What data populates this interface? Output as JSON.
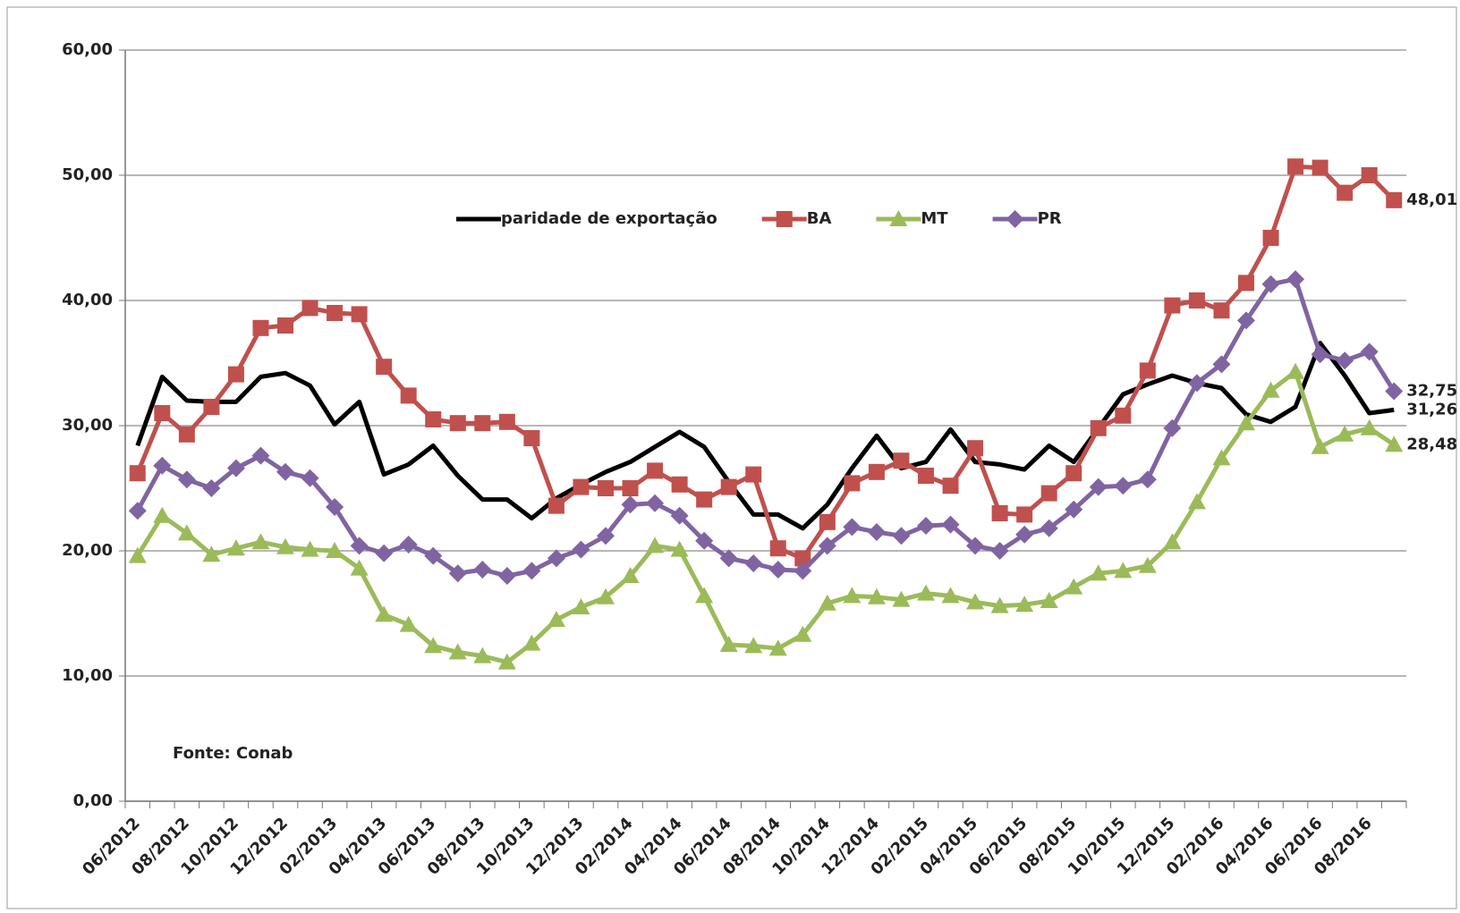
{
  "chart_data": {
    "type": "line",
    "categories": [
      "06/2012",
      null,
      "08/2012",
      null,
      "10/2012",
      null,
      "12/2012",
      null,
      "02/2013",
      null,
      "04/2013",
      null,
      "06/2013",
      null,
      "08/2013",
      null,
      "10/2013",
      null,
      "12/2013",
      null,
      "02/2014",
      null,
      "04/2014",
      null,
      "06/2014",
      null,
      "08/2014",
      null,
      "10/2014",
      null,
      "12/2014",
      null,
      "02/2015",
      null,
      "04/2015",
      null,
      "06/2015",
      null,
      "08/2015",
      null,
      "10/2015",
      null,
      "12/2015",
      null,
      "02/2016",
      null,
      "04/2016",
      null,
      "06/2016",
      null,
      "08/2016",
      null
    ],
    "series": [
      {
        "name": "paridade de exportação",
        "color": "#000000",
        "marker": "none",
        "values": [
          28.4,
          33.9,
          32.0,
          31.9,
          31.9,
          33.9,
          34.2,
          33.2,
          30.1,
          31.9,
          26.1,
          26.9,
          28.4,
          26.0,
          24.1,
          24.1,
          22.6,
          24.2,
          25.3,
          26.3,
          27.1,
          28.3,
          29.5,
          28.3,
          25.5,
          22.9,
          22.9,
          21.8,
          23.7,
          26.6,
          29.2,
          26.6,
          27.1,
          29.7,
          27.1,
          26.9,
          26.5,
          28.4,
          27.1,
          29.8,
          32.5,
          33.3,
          34.0,
          33.4,
          33.0,
          30.9,
          30.3,
          31.5,
          36.6,
          34.0,
          31.0,
          31.26
        ],
        "value_labels": [
          null,
          null,
          null,
          null,
          null,
          null,
          null,
          null,
          null,
          null,
          null,
          null,
          null,
          null,
          null,
          null,
          null,
          null,
          null,
          null,
          null,
          null,
          null,
          null,
          null,
          null,
          null,
          null,
          null,
          null,
          null,
          null,
          null,
          null,
          null,
          null,
          null,
          null,
          null,
          null,
          null,
          null,
          null,
          null,
          null,
          null,
          null,
          null,
          null,
          null,
          null,
          "31,26"
        ]
      },
      {
        "name": "BA",
        "color": "#c0504d",
        "marker": "square",
        "values": [
          26.2,
          31.0,
          29.3,
          31.5,
          34.1,
          37.8,
          38.0,
          39.4,
          39.0,
          38.9,
          34.7,
          32.4,
          30.5,
          30.2,
          30.2,
          30.3,
          29.0,
          23.6,
          25.1,
          25.0,
          25.0,
          26.4,
          25.3,
          24.1,
          25.1,
          26.1,
          20.2,
          19.4,
          22.3,
          25.4,
          26.3,
          27.2,
          26.0,
          25.2,
          28.2,
          23.0,
          22.9,
          24.6,
          26.2,
          29.8,
          30.8,
          34.4,
          39.6,
          40.0,
          39.2,
          41.4,
          45.0,
          50.7,
          50.6,
          48.6,
          50.0,
          48.01
        ],
        "value_labels": [
          null,
          null,
          null,
          null,
          null,
          null,
          null,
          null,
          null,
          null,
          null,
          null,
          null,
          null,
          null,
          null,
          null,
          null,
          null,
          null,
          null,
          null,
          null,
          null,
          null,
          null,
          null,
          null,
          null,
          null,
          null,
          null,
          null,
          null,
          null,
          null,
          null,
          null,
          null,
          null,
          null,
          null,
          null,
          null,
          null,
          null,
          null,
          null,
          null,
          null,
          null,
          "48,01"
        ]
      },
      {
        "name": "MT",
        "color": "#9bbb59",
        "marker": "triangle",
        "values": [
          19.6,
          22.8,
          21.4,
          19.7,
          20.2,
          20.7,
          20.3,
          20.1,
          20.0,
          18.6,
          14.9,
          14.1,
          12.4,
          11.9,
          11.6,
          11.1,
          12.6,
          14.5,
          15.5,
          16.3,
          18.0,
          20.4,
          20.1,
          16.4,
          12.5,
          12.4,
          12.2,
          13.3,
          15.8,
          16.4,
          16.3,
          16.1,
          16.6,
          16.4,
          15.9,
          15.6,
          15.7,
          16.0,
          17.1,
          18.2,
          18.4,
          18.8,
          20.7,
          23.9,
          27.4,
          30.2,
          32.8,
          34.3,
          28.3,
          29.3,
          29.8,
          28.48
        ],
        "value_labels": [
          null,
          null,
          null,
          null,
          null,
          null,
          null,
          null,
          null,
          null,
          null,
          null,
          null,
          null,
          null,
          null,
          null,
          null,
          null,
          null,
          null,
          null,
          null,
          null,
          null,
          null,
          null,
          null,
          null,
          null,
          null,
          null,
          null,
          null,
          null,
          null,
          null,
          null,
          null,
          null,
          null,
          null,
          null,
          null,
          null,
          null,
          null,
          null,
          null,
          null,
          null,
          "28,48"
        ]
      },
      {
        "name": "PR",
        "color": "#8064a2",
        "marker": "diamond",
        "values": [
          23.2,
          26.8,
          25.7,
          25.0,
          26.6,
          27.6,
          26.3,
          25.8,
          23.5,
          20.4,
          19.8,
          20.5,
          19.6,
          18.2,
          18.5,
          18.0,
          18.4,
          19.4,
          20.1,
          21.2,
          23.7,
          23.8,
          22.8,
          20.8,
          19.4,
          19.0,
          18.5,
          18.4,
          20.4,
          21.9,
          21.5,
          21.2,
          22.0,
          22.1,
          20.4,
          20.0,
          21.3,
          21.8,
          23.3,
          25.1,
          25.2,
          25.7,
          29.8,
          33.4,
          34.9,
          38.4,
          41.3,
          41.7,
          35.7,
          35.2,
          35.9,
          32.75
        ],
        "value_labels": [
          null,
          null,
          null,
          null,
          null,
          null,
          null,
          null,
          null,
          null,
          null,
          null,
          null,
          null,
          null,
          null,
          null,
          null,
          null,
          null,
          null,
          null,
          null,
          null,
          null,
          null,
          null,
          null,
          null,
          null,
          null,
          null,
          null,
          null,
          null,
          null,
          null,
          null,
          null,
          null,
          null,
          null,
          null,
          null,
          null,
          null,
          null,
          null,
          null,
          null,
          null,
          "32,75"
        ]
      }
    ],
    "ylim": [
      0,
      60
    ],
    "yticks": [
      {
        "value": 0,
        "label": "0,00"
      },
      {
        "value": 10,
        "label": "10,00"
      },
      {
        "value": 20,
        "label": "20,00"
      },
      {
        "value": 30,
        "label": "30,00"
      },
      {
        "value": 40,
        "label": "40,00"
      },
      {
        "value": 50,
        "label": "50,00"
      },
      {
        "value": 60,
        "label": "60,00"
      }
    ],
    "grid": true,
    "legend": "top",
    "annotation": "Fonte: Conab"
  }
}
